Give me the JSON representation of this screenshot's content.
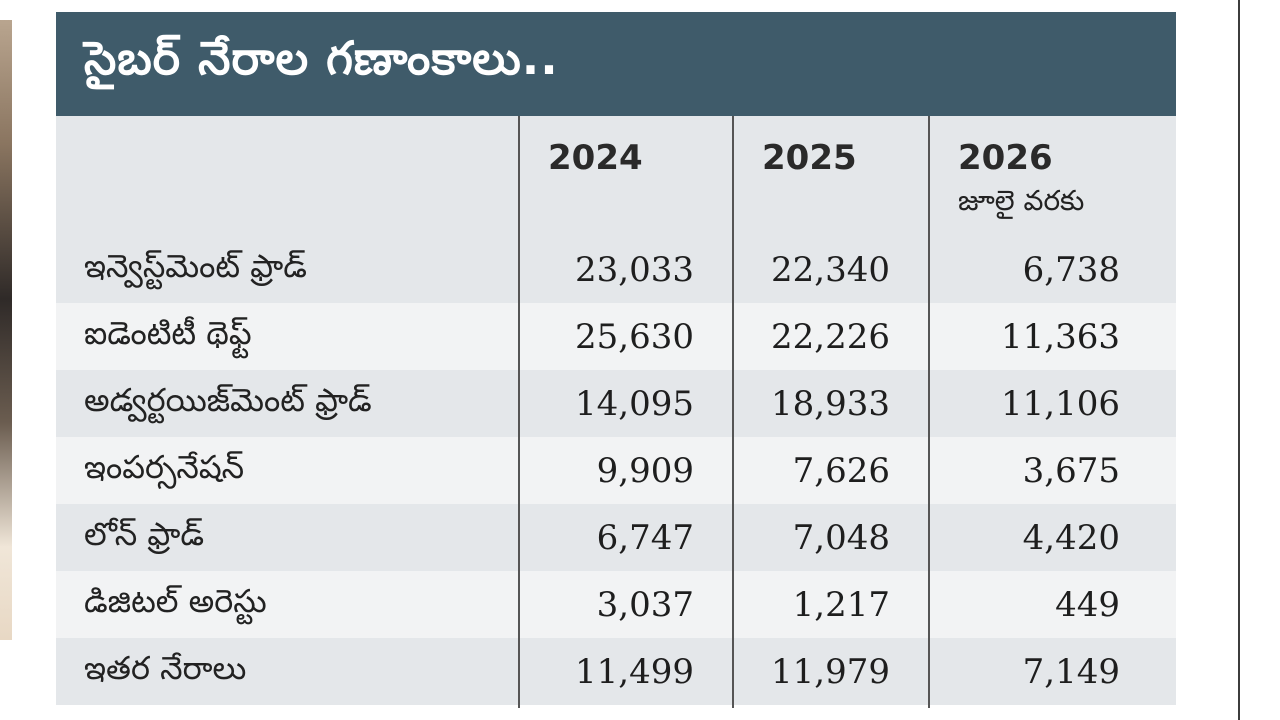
{
  "title": "సైబర్ నేరాల గణాంకాలు..",
  "columns": [
    {
      "year": "2024",
      "note": ""
    },
    {
      "year": "2025",
      "note": ""
    },
    {
      "year": "2026",
      "note": "జూలై వరకు"
    }
  ],
  "rows": [
    {
      "label": "ఇన్వెస్ట్‌మెంట్ ఫ్రాడ్",
      "values": [
        "23,033",
        "22,340",
        "6,738"
      ]
    },
    {
      "label": "ఐడెంటిటీ థెఫ్ట్",
      "values": [
        "25,630",
        "22,226",
        "11,363"
      ]
    },
    {
      "label": "అడ్వర్టయిజ్‌మెంట్ ఫ్రాడ్",
      "values": [
        "14,095",
        "18,933",
        "11,106"
      ]
    },
    {
      "label": "ఇంపర్సనేషన్",
      "values": [
        "9,909",
        "7,626",
        "3,675"
      ]
    },
    {
      "label": "లోన్ ఫ్రాడ్",
      "values": [
        "6,747",
        "7,048",
        "4,420"
      ]
    },
    {
      "label": "డిజిటల్ అరెస్టు",
      "values": [
        "3,037",
        "1,217",
        "449"
      ]
    },
    {
      "label": "ఇతర నేరాలు",
      "values": [
        "11,499",
        "11,979",
        "7,149"
      ]
    }
  ],
  "colors": {
    "title_bg": "#3f5b6a",
    "row_shade": "#e4e7ea",
    "row_light": "#f2f3f4"
  }
}
